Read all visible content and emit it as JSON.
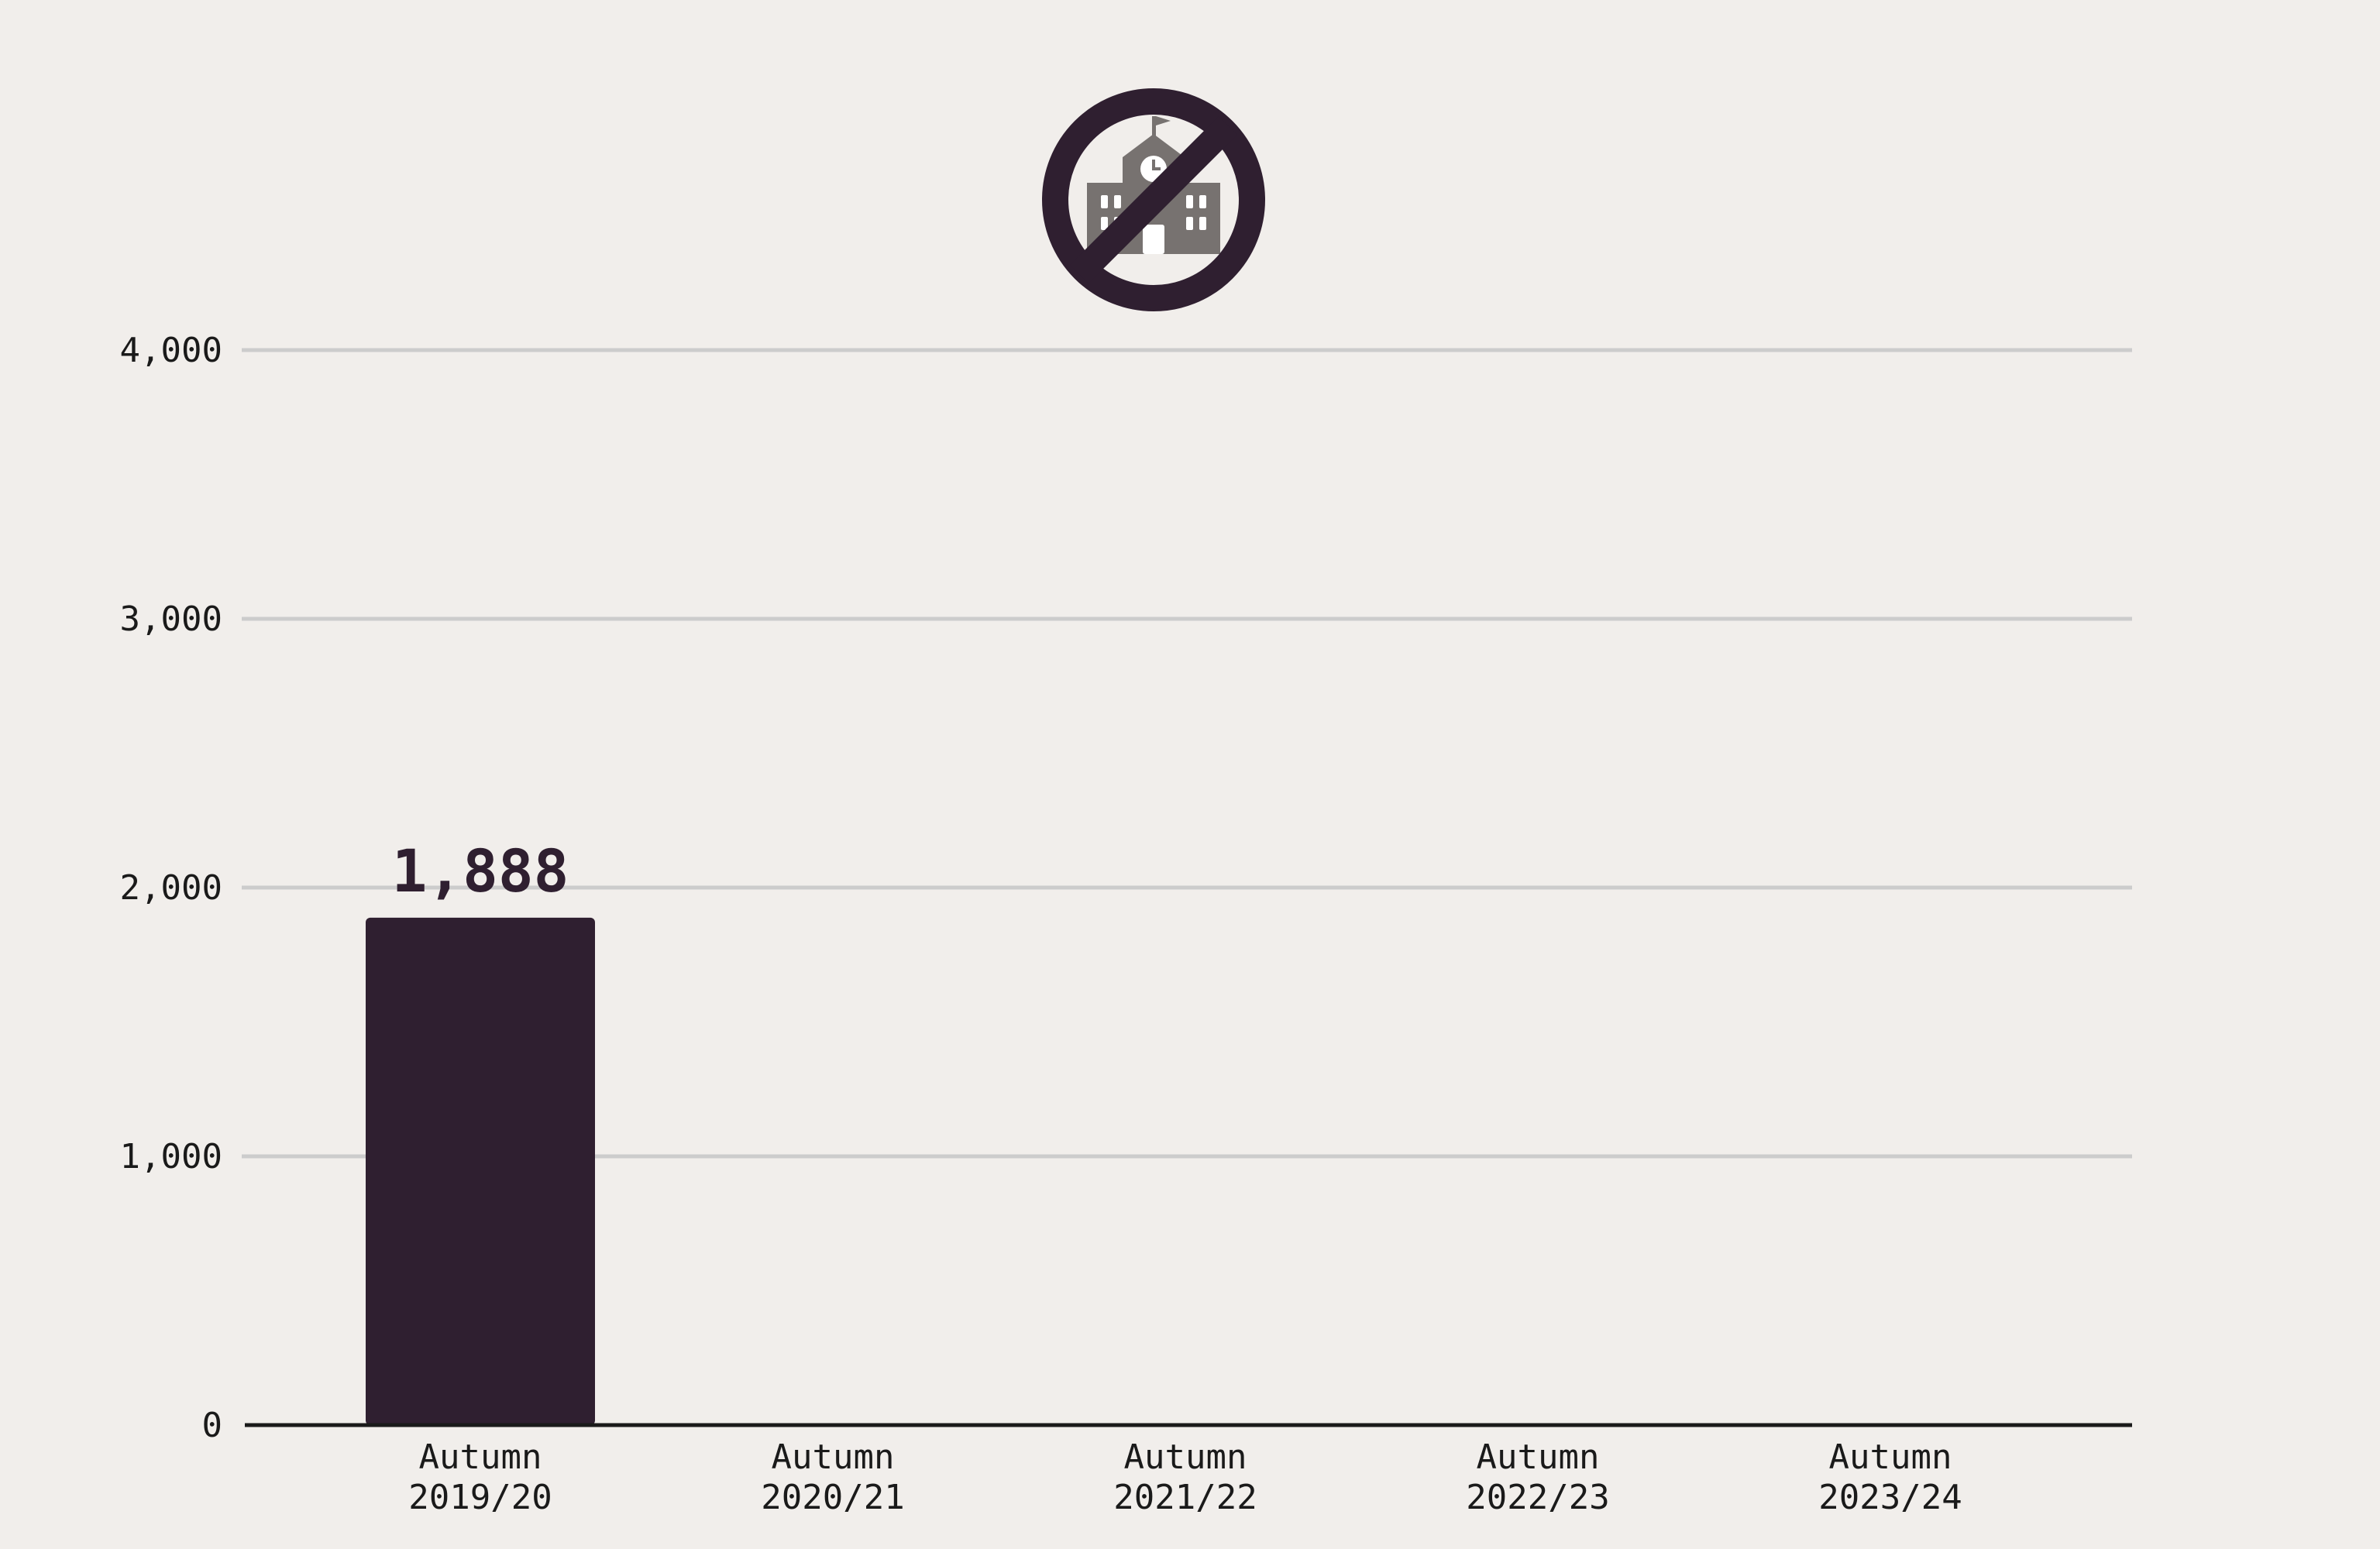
{
  "chart_data": {
    "type": "bar",
    "categories": [
      "Autumn 2019/20",
      "Autumn 2020/21",
      "Autumn 2021/22",
      "Autumn 2022/23",
      "Autumn 2023/24"
    ],
    "category_lines": [
      [
        "Autumn",
        "2019/20"
      ],
      [
        "Autumn",
        "2020/21"
      ],
      [
        "Autumn",
        "2021/22"
      ],
      [
        "Autumn",
        "2022/23"
      ],
      [
        "Autumn",
        "2023/24"
      ]
    ],
    "values": [
      1888,
      null,
      null,
      null,
      null
    ],
    "data_labels": [
      "1,888",
      "",
      "",
      "",
      ""
    ],
    "title": "",
    "xlabel": "",
    "ylabel": "",
    "ylim": [
      0,
      4000
    ],
    "yticks": [
      0,
      1000,
      2000,
      3000,
      4000
    ],
    "ytick_labels": [
      "0",
      "1,000",
      "2,000",
      "3,000",
      "4,000"
    ],
    "grid": true,
    "legend": "none",
    "icon": "no-school-icon",
    "colors": {
      "background": "#f1eeeb",
      "bar": "#2f1f30",
      "grid": "#cccccc",
      "axis": "#1a1a1a",
      "icon_ring": "#2f1f30",
      "icon_building": "#777270"
    }
  }
}
